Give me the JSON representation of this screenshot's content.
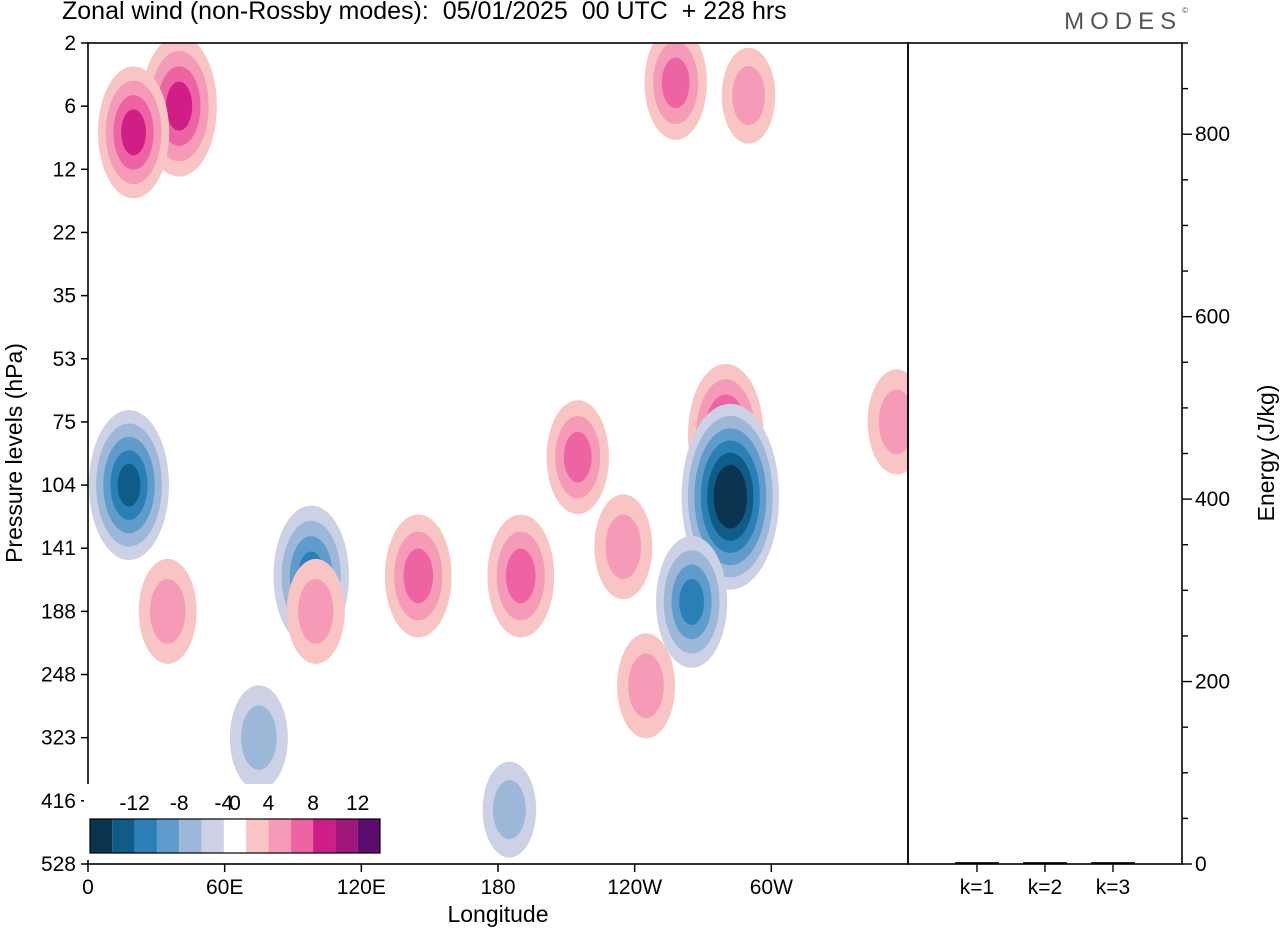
{
  "figure": {
    "title": "Zonal wind (non-Rossby modes):  05/01/2025  00 UTC  + 228 hrs",
    "brand": "MODES",
    "brand_mark": "©"
  },
  "chart_data": [
    {
      "type": "heatmap",
      "xlabel": "Longitude",
      "ylabel": "Pressure levels (hPa)",
      "x_ticks": [
        "0",
        "60E",
        "120E",
        "180",
        "120W",
        "60W"
      ],
      "x_tick_values_deg": [
        0,
        60,
        120,
        180,
        240,
        300
      ],
      "xlim": [
        0,
        360
      ],
      "y_ticks": [
        "2",
        "6",
        "12",
        "22",
        "35",
        "53",
        "75",
        "104",
        "141",
        "188",
        "248",
        "323",
        "416",
        "528"
      ],
      "colorbar": {
        "labels": [
          "-12",
          "-8",
          "-4",
          "0",
          "4",
          "8",
          "12"
        ],
        "levels": [
          -14,
          -12,
          -10,
          -8,
          -6,
          -4,
          -2,
          2,
          4,
          6,
          8,
          10,
          12,
          14
        ],
        "colors": [
          "#0a3450",
          "#0e5c87",
          "#2a80b5",
          "#5f9ccb",
          "#9db7d9",
          "#cdd1e6",
          "#ffffff",
          "#f9c5c4",
          "#f59bb7",
          "#ee63a2",
          "#cf1f86",
          "#a0157a",
          "#5a0d6e"
        ]
      },
      "features": [
        {
          "lon": 40,
          "level": 6,
          "value": 9
        },
        {
          "lon": 20,
          "level": 8,
          "value": 8
        },
        {
          "lon": 18,
          "level": 104,
          "value": -10
        },
        {
          "lon": 98,
          "level": 160,
          "value": -9
        },
        {
          "lon": 100,
          "level": 188,
          "value": 5
        },
        {
          "lon": 145,
          "level": 160,
          "value": 7
        },
        {
          "lon": 190,
          "level": 160,
          "value": 7
        },
        {
          "lon": 215,
          "level": 90,
          "value": 6
        },
        {
          "lon": 280,
          "level": 80,
          "value": 9
        },
        {
          "lon": 282,
          "level": 110,
          "value": -14
        },
        {
          "lon": 265,
          "level": 180,
          "value": -8
        },
        {
          "lon": 35,
          "level": 188,
          "value": 5
        },
        {
          "lon": 235,
          "level": 140,
          "value": 5
        },
        {
          "lon": 355,
          "level": 75,
          "value": 5
        },
        {
          "lon": 258,
          "level": 4,
          "value": 6
        },
        {
          "lon": 290,
          "level": 5,
          "value": 4
        },
        {
          "lon": 75,
          "level": 323,
          "value": -5
        },
        {
          "lon": 185,
          "level": 430,
          "value": -4
        },
        {
          "lon": 245,
          "level": 260,
          "value": 5
        }
      ]
    },
    {
      "type": "bar",
      "ylabel": "Energy (J/kg)",
      "ylim": [
        0,
        900
      ],
      "y_ticks": [
        "0",
        "200",
        "400",
        "600",
        "800"
      ],
      "y_tick_values": [
        0,
        200,
        400,
        600,
        800
      ],
      "categories": [
        "k=1",
        "k=2",
        "k=3"
      ],
      "values": [
        2,
        2,
        2
      ]
    }
  ]
}
